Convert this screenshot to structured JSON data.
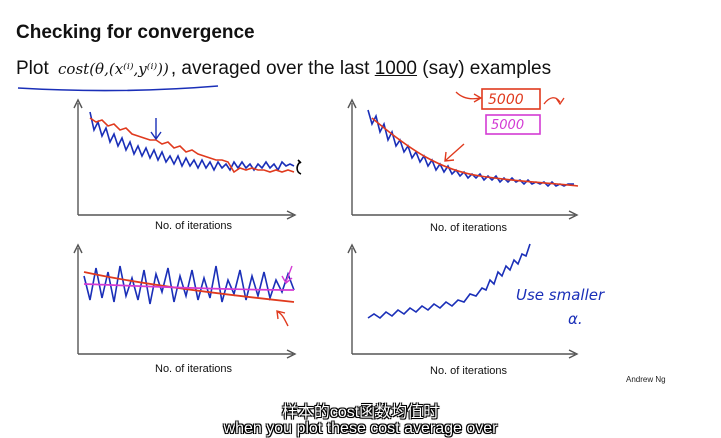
{
  "slide": {
    "title": "Checking for convergence",
    "subtitle": {
      "prefix": "Plot",
      "formula": "cost(θ,(x⁽ⁱ⁾,y⁽ⁱ⁾))",
      "middle": ", averaged over the last",
      "number": "1000",
      "suffix": "(say) examples"
    },
    "annotations": {
      "box_red": "5000",
      "box_pink": "5000",
      "note_line1": "Use smaller",
      "note_line2": "α."
    },
    "charts": [
      {
        "xlabel": "No. of iterations"
      },
      {
        "xlabel": "No. of iterations"
      },
      {
        "xlabel": "No. of iterations"
      },
      {
        "xlabel": "No. of iterations"
      }
    ],
    "credit": "Andrew Ng"
  },
  "colors": {
    "blue": "#1a2fb8",
    "red": "#e03a1e",
    "magenta": "#d43bd4",
    "axis": "#555555"
  },
  "subtitles": {
    "chinese": "样本的cost函数均值时",
    "english": "when you plot these cost average over"
  }
}
